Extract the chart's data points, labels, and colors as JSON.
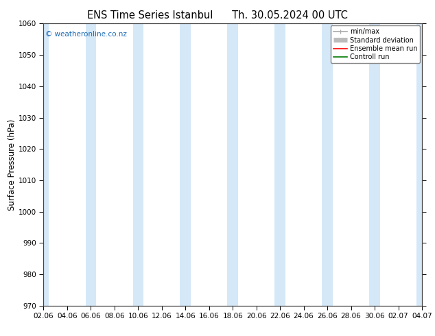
{
  "title_left": "ENS Time Series Istanbul",
  "title_right": "Th. 30.05.2024 00 UTC",
  "ylabel": "Surface Pressure (hPa)",
  "ylim": [
    970,
    1060
  ],
  "yticks": [
    970,
    980,
    990,
    1000,
    1010,
    1020,
    1030,
    1040,
    1050,
    1060
  ],
  "xlabel_ticks": [
    "02.06",
    "04.06",
    "06.06",
    "08.06",
    "10.06",
    "12.06",
    "14.06",
    "16.06",
    "18.06",
    "20.06",
    "22.06",
    "24.06",
    "26.06",
    "28.06",
    "30.06",
    "02.07",
    "04.07"
  ],
  "background_color": "#ffffff",
  "plot_bg_color": "#ffffff",
  "shaded_color": "#d4e8f8",
  "watermark": "© weatheronline.co.nz",
  "watermark_color": "#1a6ab5",
  "legend_items": [
    {
      "label": "min/max",
      "color": "#aaaaaa",
      "lw": 1.2
    },
    {
      "label": "Standard deviation",
      "color": "#bbbbbb",
      "lw": 5
    },
    {
      "label": "Ensemble mean run",
      "color": "#ff0000",
      "lw": 1.2
    },
    {
      "label": "Controll run",
      "color": "#007700",
      "lw": 1.2
    }
  ],
  "title_fontsize": 10.5,
  "tick_fontsize": 7.5,
  "ylabel_fontsize": 8.5,
  "watermark_fontsize": 7.5,
  "legend_fontsize": 7,
  "fig_width": 6.34,
  "fig_height": 4.9,
  "dpi": 100,
  "n_xticks": 17,
  "n_shaded_bands": 9,
  "shaded_band_positions": [
    0,
    2,
    4,
    6,
    8,
    10,
    12,
    14,
    16
  ]
}
